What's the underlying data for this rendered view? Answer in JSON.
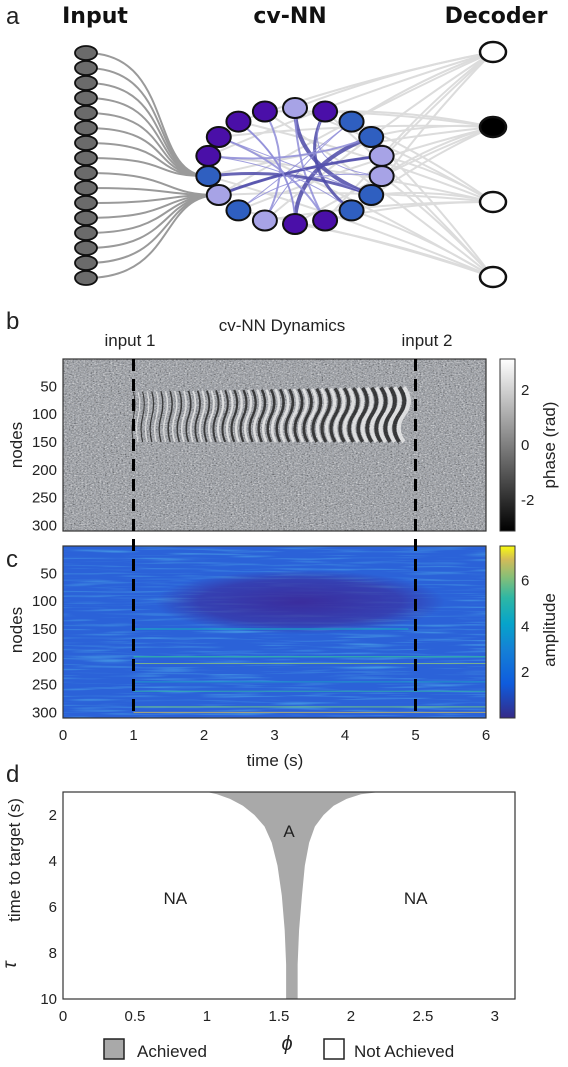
{
  "panel_a": {
    "letter": "a",
    "input_label": "Input",
    "network_label": "cv-NN",
    "decoder_label": "Decoder",
    "input_node_count": 16,
    "ring_node_count": 18,
    "decoder_node_count": 4,
    "active_decoder_index": 1,
    "colors": {
      "input_node": "#6b6b6b",
      "ring_dark": "#4a0fa8",
      "ring_mid": "#2f5fc0",
      "ring_light": "#a7a3e6",
      "edge": "#9a9a9a",
      "decoder_edge": "#dcdcdc"
    }
  },
  "chart_data": [
    {
      "panel": "b",
      "type": "heatmap",
      "title": "cv-NN Dynamics",
      "ylabel": "nodes",
      "yticks": [
        50,
        100,
        150,
        200,
        250,
        300
      ],
      "ylim": [
        1,
        310
      ],
      "xlim": [
        0,
        6
      ],
      "annotations": [
        {
          "x": 1,
          "label": "input 1"
        },
        {
          "x": 5,
          "label": "input 2"
        }
      ],
      "colorbar": {
        "label": "phase (rad)",
        "ticks": [
          2,
          0,
          -2
        ],
        "range": [
          -3.14,
          3.14
        ],
        "colormap": "gray"
      }
    },
    {
      "panel": "c",
      "type": "heatmap",
      "xlabel": "time (s)",
      "ylabel": "nodes",
      "xticks": [
        0,
        1,
        2,
        3,
        4,
        5,
        6
      ],
      "xlim": [
        0,
        6
      ],
      "yticks": [
        50,
        100,
        150,
        200,
        250,
        300
      ],
      "ylim": [
        1,
        310
      ],
      "vlines": [
        1,
        5
      ],
      "colorbar": {
        "label": "amplitude",
        "ticks": [
          6,
          4,
          2
        ],
        "range": [
          0,
          7.5
        ],
        "colormap": "parula"
      }
    },
    {
      "panel": "d",
      "type": "area",
      "xlabel": "ϕ",
      "ylabel": "time to target (s)",
      "ylabel_symbol": "τ",
      "xlim": [
        0,
        3.14
      ],
      "ylim": [
        1,
        10
      ],
      "xticks": [
        "0",
        "0.5",
        "1",
        "1.5",
        "2",
        "2.5",
        "3"
      ],
      "yticks": [
        2,
        4,
        6,
        8,
        10
      ],
      "y_reversed": true,
      "region_labels": [
        {
          "text": "A",
          "x": 1.57,
          "y": 2.7
        },
        {
          "text": "NA",
          "x": 0.78,
          "y": 5.6
        },
        {
          "text": "NA",
          "x": 2.45,
          "y": 5.6
        }
      ],
      "series": [
        {
          "name": "Achieved",
          "tau": [
            1.0,
            1.1,
            1.3,
            1.6,
            2.0,
            2.5,
            3.2,
            4.2,
            5.5,
            7.0,
            8.5,
            10.0
          ],
          "phi_lower": [
            1.0,
            1.07,
            1.16,
            1.25,
            1.33,
            1.4,
            1.45,
            1.49,
            1.52,
            1.54,
            1.55,
            1.55
          ],
          "phi_upper": [
            2.2,
            2.07,
            1.97,
            1.88,
            1.81,
            1.75,
            1.71,
            1.68,
            1.66,
            1.64,
            1.63,
            1.63
          ],
          "color": "#a9a9a9"
        }
      ],
      "legend": [
        {
          "label": "Achieved",
          "swatch": "#a9a9a9"
        },
        {
          "label": "Not Achieved",
          "swatch": "#ffffff"
        }
      ],
      "legend_placement": "bottom"
    }
  ],
  "labels": {
    "b_letter": "b",
    "c_letter": "c",
    "d_letter": "d"
  }
}
